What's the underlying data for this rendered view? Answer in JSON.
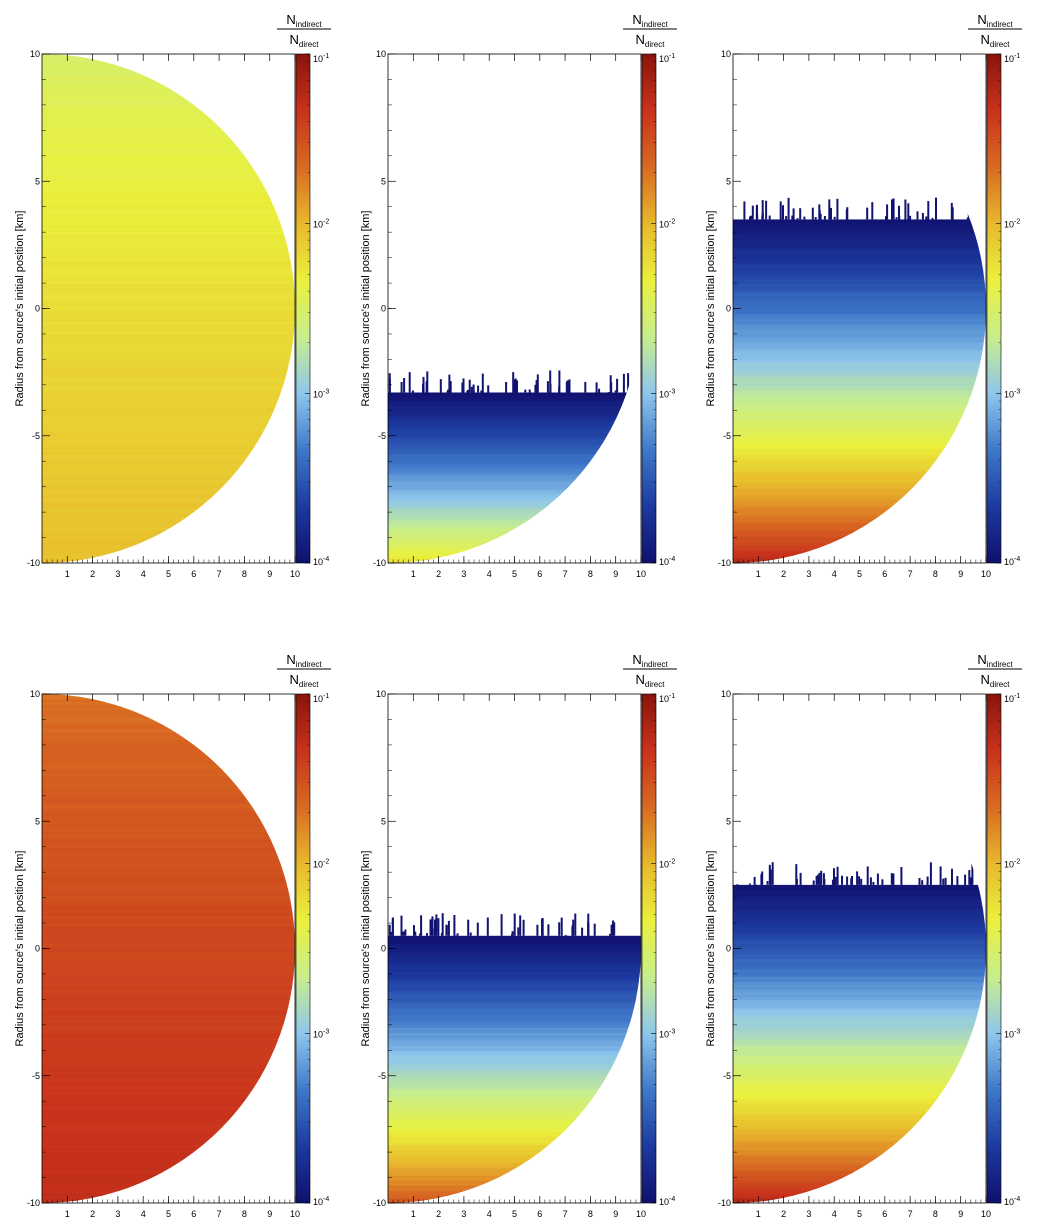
{
  "chart_data": [
    {
      "type": "heatmap",
      "ylabel": "Radius from source's initial position [km]",
      "xlim": [
        0,
        10
      ],
      "ylim": [
        -10,
        10
      ],
      "x_ticks": [
        "1",
        "2",
        "3",
        "4",
        "5",
        "6",
        "7",
        "8",
        "9",
        "10"
      ],
      "y_ticks": [
        "10",
        "5",
        "0",
        "-5",
        "-10"
      ],
      "colorbar": {
        "title_num": "N",
        "title_num_sub": "indirect",
        "title_den": "N",
        "title_den_sub": "direct",
        "scale": "log",
        "range": [
          0.0001,
          0.1
        ],
        "ticks": [
          {
            "base": "10",
            "exp": "-1"
          },
          {
            "base": "10",
            "exp": "-2"
          },
          {
            "base": "10",
            "exp": "-3"
          },
          {
            "base": "10",
            "exp": "-4"
          }
        ]
      },
      "pattern": "near_uniform",
      "value_min": 0.003,
      "value_max": 0.009,
      "upper_cutoff": 10,
      "lower_cutoff": -10
    },
    {
      "type": "heatmap",
      "ylabel": "Radius from source's initial position [km]",
      "xlim": [
        0,
        10
      ],
      "ylim": [
        -10,
        10
      ],
      "x_ticks": [
        "1",
        "2",
        "3",
        "4",
        "5",
        "6",
        "7",
        "8",
        "9",
        "10"
      ],
      "y_ticks": [
        "10",
        "5",
        "0",
        "-5",
        "-10"
      ],
      "colorbar": {
        "title_num": "N",
        "title_num_sub": "indirect",
        "title_den": "N",
        "title_den_sub": "direct",
        "scale": "log",
        "range": [
          0.0001,
          0.1
        ],
        "ticks": [
          {
            "base": "10",
            "exp": "-1"
          },
          {
            "base": "10",
            "exp": "-2"
          },
          {
            "base": "10",
            "exp": "-3"
          },
          {
            "base": "10",
            "exp": "-4"
          }
        ]
      },
      "pattern": "gradient",
      "value_min": 0.0001,
      "value_max": 0.006,
      "upper_cutoff": -3.3,
      "lower_cutoff": -10
    },
    {
      "type": "heatmap",
      "ylabel": "Radius from source's initial position [km]",
      "xlim": [
        0,
        10
      ],
      "ylim": [
        -10,
        10
      ],
      "x_ticks": [
        "1",
        "2",
        "3",
        "4",
        "5",
        "6",
        "7",
        "8",
        "9",
        "10"
      ],
      "y_ticks": [
        "10",
        "5",
        "0",
        "-5",
        "-10"
      ],
      "colorbar": {
        "title_num": "N",
        "title_num_sub": "indirect",
        "title_den": "N",
        "title_den_sub": "direct",
        "scale": "log",
        "range": [
          0.0001,
          0.1
        ],
        "ticks": [
          {
            "base": "10",
            "exp": "-1"
          },
          {
            "base": "10",
            "exp": "-2"
          },
          {
            "base": "10",
            "exp": "-3"
          },
          {
            "base": "10",
            "exp": "-4"
          }
        ]
      },
      "pattern": "gradient",
      "value_min": 0.0001,
      "value_max": 0.06,
      "upper_cutoff": 3.5,
      "lower_cutoff": -10
    },
    {
      "type": "heatmap",
      "ylabel": "Radius from source's initial position [km]",
      "xlim": [
        0,
        10
      ],
      "ylim": [
        -10,
        10
      ],
      "x_ticks": [
        "1",
        "2",
        "3",
        "4",
        "5",
        "6",
        "7",
        "8",
        "9",
        "10"
      ],
      "y_ticks": [
        "10",
        "5",
        "0",
        "-5",
        "-10"
      ],
      "colorbar": {
        "title_num": "N",
        "title_num_sub": "indirect",
        "title_den": "N",
        "title_den_sub": "direct",
        "scale": "log",
        "range": [
          0.0001,
          0.1
        ],
        "ticks": [
          {
            "base": "10",
            "exp": "-1"
          },
          {
            "base": "10",
            "exp": "-2"
          },
          {
            "base": "10",
            "exp": "-3"
          },
          {
            "base": "10",
            "exp": "-4"
          }
        ]
      },
      "pattern": "near_uniform",
      "value_min": 0.02,
      "value_max": 0.05,
      "upper_cutoff": 10,
      "lower_cutoff": -10
    },
    {
      "type": "heatmap",
      "ylabel": "Radius from source's initial position [km]",
      "xlim": [
        0,
        10
      ],
      "ylim": [
        -10,
        10
      ],
      "x_ticks": [
        "1",
        "2",
        "3",
        "4",
        "5",
        "6",
        "7",
        "8",
        "9",
        "10"
      ],
      "y_ticks": [
        "10",
        "5",
        "0",
        "-5",
        "-10"
      ],
      "colorbar": {
        "title_num": "N",
        "title_num_sub": "indirect",
        "title_den": "N",
        "title_den_sub": "direct",
        "scale": "log",
        "range": [
          0.0001,
          0.1
        ],
        "ticks": [
          {
            "base": "10",
            "exp": "-1"
          },
          {
            "base": "10",
            "exp": "-2"
          },
          {
            "base": "10",
            "exp": "-3"
          },
          {
            "base": "10",
            "exp": "-4"
          }
        ]
      },
      "pattern": "gradient",
      "value_min": 0.0001,
      "value_max": 0.03,
      "upper_cutoff": 0.5,
      "lower_cutoff": -10
    },
    {
      "type": "heatmap",
      "ylabel": "Radius from source's initial position [km]",
      "xlim": [
        0,
        10
      ],
      "ylim": [
        -10,
        10
      ],
      "x_ticks": [
        "1",
        "2",
        "3",
        "4",
        "5",
        "6",
        "7",
        "8",
        "9",
        "10"
      ],
      "y_ticks": [
        "10",
        "5",
        "0",
        "-5",
        "-10"
      ],
      "colorbar": {
        "title_num": "N",
        "title_num_sub": "indirect",
        "title_den": "N",
        "title_den_sub": "direct",
        "scale": "log",
        "range": [
          0.0001,
          0.1
        ],
        "ticks": [
          {
            "base": "10",
            "exp": "-1"
          },
          {
            "base": "10",
            "exp": "-2"
          },
          {
            "base": "10",
            "exp": "-3"
          },
          {
            "base": "10",
            "exp": "-4"
          }
        ]
      },
      "pattern": "gradient",
      "value_min": 0.0001,
      "value_max": 0.06,
      "upper_cutoff": 2.5,
      "lower_cutoff": -10
    }
  ],
  "colormap": [
    "#10106e",
    "#1c3aa0",
    "#3f78c8",
    "#8ec6ec",
    "#c8ee8c",
    "#eaf03c",
    "#e8b82c",
    "#d86a22",
    "#c8321c",
    "#8a140c"
  ]
}
